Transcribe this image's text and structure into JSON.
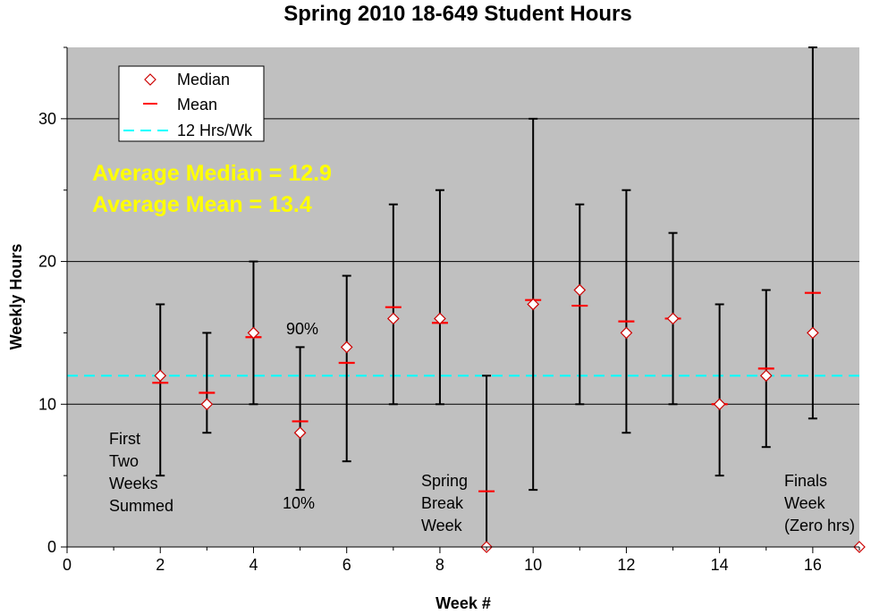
{
  "chart_data": {
    "type": "scatter",
    "title": "Spring 2010 18-649 Student Hours",
    "xlabel": "Week #",
    "ylabel": "Weekly Hours",
    "xlim": [
      0,
      17
    ],
    "ylim": [
      0,
      35
    ],
    "x_ticks": [
      0,
      2,
      4,
      6,
      8,
      10,
      12,
      14,
      16
    ],
    "y_ticks": [
      0,
      10,
      20,
      30
    ],
    "grid": "horizontal major lines at 10, 20, 30",
    "plot_background": "#c0c0c0",
    "legend_position": "top-left",
    "legend": [
      {
        "label": "Median",
        "marker": "diamond",
        "color": "#cc0000"
      },
      {
        "label": "Mean",
        "marker": "dash",
        "color": "#ff0000"
      },
      {
        "label": "12 Hrs/Wk",
        "marker": "dashed-line",
        "color": "#00ffff"
      }
    ],
    "reference_line": {
      "label": "12 Hrs/Wk",
      "y": 12,
      "color": "#00ffff"
    },
    "series": [
      {
        "name": "Median",
        "x": [
          2,
          3,
          4,
          5,
          6,
          7,
          8,
          9,
          10,
          11,
          12,
          13,
          14,
          15,
          16,
          17
        ],
        "values": [
          12,
          10,
          15,
          8,
          14,
          16,
          16,
          0,
          17,
          18,
          15,
          16,
          10,
          12,
          15,
          0
        ]
      },
      {
        "name": "Mean",
        "x": [
          2,
          3,
          4,
          5,
          6,
          7,
          8,
          9,
          10,
          11,
          12,
          13,
          14,
          15,
          16
        ],
        "values": [
          11.5,
          10.8,
          14.7,
          8.8,
          12.9,
          16.8,
          15.7,
          3.9,
          17.3,
          16.9,
          15.8,
          16.0,
          10.0,
          12.5,
          17.8
        ]
      },
      {
        "name": "10%-90% range",
        "x": [
          2,
          3,
          4,
          5,
          6,
          7,
          8,
          9,
          10,
          11,
          12,
          13,
          14,
          15,
          16
        ],
        "low": [
          5,
          8,
          10,
          4,
          6,
          10,
          10,
          0,
          4,
          10,
          8,
          10,
          5,
          7,
          9
        ],
        "high": [
          17,
          15,
          20,
          14,
          19,
          24,
          25,
          12,
          30,
          24,
          25,
          22,
          17,
          18,
          35
        ]
      }
    ],
    "stats_text": [
      "Average Median = 12.9",
      "Average Mean = 13.4"
    ],
    "annotations": {
      "label_90": "90%",
      "label_10": "10%",
      "first_two_weeks": [
        "First",
        "Two",
        "Weeks",
        "Summed"
      ],
      "spring_break": [
        "Spring",
        "Break",
        "Week"
      ],
      "finals_week": [
        "Finals",
        "Week",
        "(Zero hrs)"
      ]
    }
  }
}
